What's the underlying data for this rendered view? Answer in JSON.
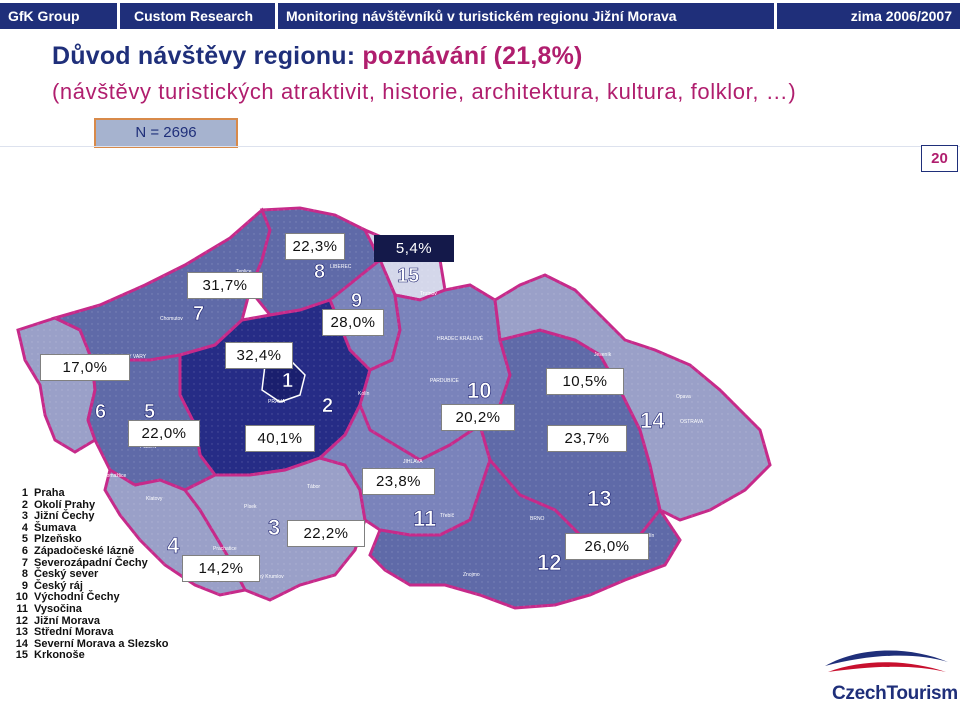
{
  "header": {
    "company": "GfK Group",
    "division": "Custom Research",
    "study": "Monitoring návštěvníků v turistickém regionu Jižní Morava",
    "period": "zima 2006/2007"
  },
  "title": {
    "prefix": "Důvod návštěvy regionu: ",
    "highlight": "poznávání (21,8%)",
    "subtitle": "(návštěvy turistických atraktivit, historie, architektura, kultura, folklor, …)"
  },
  "sample": "N = 2696",
  "page_number": "20",
  "map": {
    "region_labels": [
      {
        "number": "1",
        "value": "40,1%"
      },
      {
        "number": "2",
        "value": "32,4%"
      },
      {
        "number": "3",
        "value": "22,2%"
      },
      {
        "number": "4",
        "value": "14,2%"
      },
      {
        "number": "5",
        "value": "22,0%"
      },
      {
        "number": "6",
        "value": "17,0%"
      },
      {
        "number": "7",
        "value": "31,7%"
      },
      {
        "number": "8",
        "value": "22,3%"
      },
      {
        "number": "9",
        "value": "28,0%"
      },
      {
        "number": "10",
        "value": "20,2%"
      },
      {
        "number": "11",
        "value": "23,8%"
      },
      {
        "number": "12",
        "value": "26,0%"
      },
      {
        "number": "13",
        "value": "23,7%"
      },
      {
        "number": "14",
        "value": "10,5%"
      },
      {
        "number": "15",
        "value": "5,4%"
      }
    ],
    "cities": [
      "PRAHA",
      "LIBEREC",
      "Trutnov",
      "HRADEC KRÁLOVÉ",
      "PARDUBICE",
      "OLOMOUC",
      "OSTRAVA",
      "BRNO",
      "JIHLAVA",
      "PLZEŇ",
      "KARLOVY VARY",
      "Domažlice",
      "Tábor",
      "Písek",
      "Zlín",
      "Opava",
      "Jeseník",
      "Teplice",
      "Chomutov",
      "Kladno",
      "Kolín",
      "Třebíč",
      "Znojmo",
      "Klatovy",
      "Prachatice",
      "Český Krumlov"
    ]
  },
  "legend": [
    {
      "n": "1",
      "name": "Praha"
    },
    {
      "n": "2",
      "name": "Okolí Prahy"
    },
    {
      "n": "3",
      "name": "Jižní Čechy"
    },
    {
      "n": "4",
      "name": "Šumava"
    },
    {
      "n": "5",
      "name": "Plzeňsko"
    },
    {
      "n": "6",
      "name": "Západočeské lázně"
    },
    {
      "n": "7",
      "name": "Severozápadní Čechy"
    },
    {
      "n": "8",
      "name": "Český sever"
    },
    {
      "n": "9",
      "name": "Český ráj"
    },
    {
      "n": "10",
      "name": "Východní Čechy"
    },
    {
      "n": "11",
      "name": "Vysočina"
    },
    {
      "n": "12",
      "name": "Jižní Morava"
    },
    {
      "n": "13",
      "name": "Střední Morava"
    },
    {
      "n": "14",
      "name": "Severní Morava a Slezsko"
    },
    {
      "n": "15",
      "name": "Krkonoše"
    }
  ],
  "logo": "CzechTourism",
  "colors": {
    "header_bg": "#1f2f7a",
    "accent": "#b01e6e",
    "dark_region": "#262c86",
    "mid_region": "#5f6aa8",
    "light_region": "#9aa0c8",
    "lighter_region": "#b8bcd8",
    "border": "#c62a8a"
  }
}
